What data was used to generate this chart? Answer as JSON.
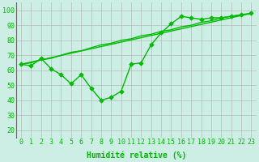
{
  "x": [
    0,
    1,
    2,
    3,
    4,
    5,
    6,
    7,
    8,
    9,
    10,
    11,
    12,
    13,
    14,
    15,
    16,
    17,
    18,
    19,
    20,
    21,
    22,
    23
  ],
  "line1": [
    64,
    63,
    68,
    61,
    57,
    51,
    57,
    48,
    40,
    42,
    46,
    64,
    65,
    77,
    85,
    91,
    96,
    95,
    94,
    95,
    95,
    96,
    97,
    98
  ],
  "line2": [
    64,
    65,
    67,
    68,
    70,
    72,
    73,
    75,
    77,
    78,
    80,
    81,
    83,
    84,
    86,
    87,
    89,
    90,
    92,
    93,
    95,
    96,
    97,
    98
  ],
  "line_color": "#00bb00",
  "bg_color": "#cceee4",
  "grid_color": "#aaaaaa",
  "xlabel": "Humidité relative (%)",
  "ylim": [
    15,
    105
  ],
  "xlim": [
    -0.5,
    23.5
  ],
  "yticks": [
    20,
    30,
    40,
    50,
    60,
    70,
    80,
    90,
    100
  ],
  "xticks": [
    0,
    1,
    2,
    3,
    4,
    5,
    6,
    7,
    8,
    9,
    10,
    11,
    12,
    13,
    14,
    15,
    16,
    17,
    18,
    19,
    20,
    21,
    22,
    23
  ],
  "marker": "D",
  "markersize": 2.8,
  "linewidth": 1.0,
  "xlabel_fontsize": 7.0,
  "tick_fontsize": 6.0
}
